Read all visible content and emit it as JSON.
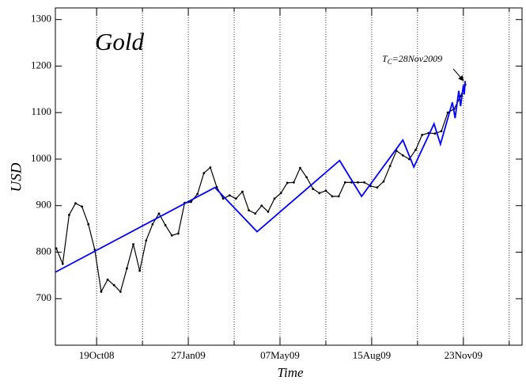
{
  "chart_data": {
    "type": "line",
    "title": "Gold",
    "xlabel": "Time",
    "ylabel": "USD",
    "annotation": {
      "symbol": "T",
      "subscript": "C",
      "text": "=28Nov2009"
    },
    "xlim": [
      "2008-09-04",
      "2010-01-26"
    ],
    "xticks": [
      {
        "value": "2008-10-19",
        "label": "19Oct08"
      },
      {
        "value": "2009-01-27",
        "label": "27Jan09"
      },
      {
        "value": "2009-05-07",
        "label": "07May09"
      },
      {
        "value": "2009-08-15",
        "label": "15Aug09"
      },
      {
        "value": "2009-11-23",
        "label": "23Nov09"
      }
    ],
    "minor_xticks": [
      "2008-12-08",
      "2009-03-18",
      "2009-06-26",
      "2009-10-04",
      "2010-01-12"
    ],
    "ylim": [
      600,
      1325
    ],
    "yticks": [
      700,
      800,
      900,
      1000,
      1100,
      1200,
      1300
    ],
    "grid": true,
    "series": [
      {
        "color": "#000000",
        "x": [
          "2008-09-05",
          "2008-09-12",
          "2008-09-19",
          "2008-09-26",
          "2008-10-03",
          "2008-10-10",
          "2008-10-17",
          "2008-10-24",
          "2008-10-31",
          "2008-11-07",
          "2008-11-14",
          "2008-11-21",
          "2008-11-28",
          "2008-12-05",
          "2008-12-12",
          "2008-12-19",
          "2008-12-26",
          "2009-01-02",
          "2009-01-09",
          "2009-01-16",
          "2009-01-23",
          "2009-01-30",
          "2009-02-06",
          "2009-02-13",
          "2009-02-20",
          "2009-02-27",
          "2009-03-06",
          "2009-03-13",
          "2009-03-20",
          "2009-03-27",
          "2009-04-03",
          "2009-04-10",
          "2009-04-17",
          "2009-04-24",
          "2009-05-01",
          "2009-05-08",
          "2009-05-15",
          "2009-05-22",
          "2009-05-29",
          "2009-06-05",
          "2009-06-12",
          "2009-06-19",
          "2009-06-26",
          "2009-07-03",
          "2009-07-10",
          "2009-07-17",
          "2009-07-24",
          "2009-07-31",
          "2009-08-07",
          "2009-08-14",
          "2009-08-21",
          "2009-08-28",
          "2009-09-04",
          "2009-09-11",
          "2009-09-18",
          "2009-09-25",
          "2009-10-02",
          "2009-10-09",
          "2009-10-16",
          "2009-10-23",
          "2009-10-30",
          "2009-11-06",
          "2009-11-13",
          "2009-11-20",
          "2009-11-25"
        ],
        "values": [
          808,
          775,
          880,
          905,
          898,
          860,
          805,
          715,
          741,
          729,
          715,
          765,
          817,
          760,
          825,
          860,
          883,
          858,
          836,
          840,
          906,
          908,
          925,
          970,
          982,
          940,
          915,
          922,
          915,
          930,
          890,
          883,
          900,
          887,
          915,
          927,
          949,
          950,
          981,
          961,
          936,
          927,
          932,
          920,
          920,
          950,
          950,
          950,
          950,
          942,
          939,
          952,
          985,
          1018,
          1008,
          1000,
          1020,
          1052,
          1056,
          1055,
          1060,
          1100,
          1108,
          1135,
          1160
        ]
      },
      {
        "color": "#0000ff",
        "x": [
          "2008-09-04",
          "2009-02-25",
          "2009-04-12",
          "2009-07-11",
          "2009-08-04",
          "2009-09-18",
          "2009-09-30",
          "2009-10-22",
          "2009-10-29",
          "2009-11-11",
          "2009-11-14",
          "2009-11-18",
          "2009-11-20",
          "2009-11-23",
          "2009-11-24",
          "2009-11-25"
        ],
        "values": [
          757,
          939,
          844,
          997,
          920,
          1041,
          983,
          1076,
          1032,
          1122,
          1088,
          1147,
          1114,
          1159,
          1139,
          1168
        ]
      }
    ]
  }
}
